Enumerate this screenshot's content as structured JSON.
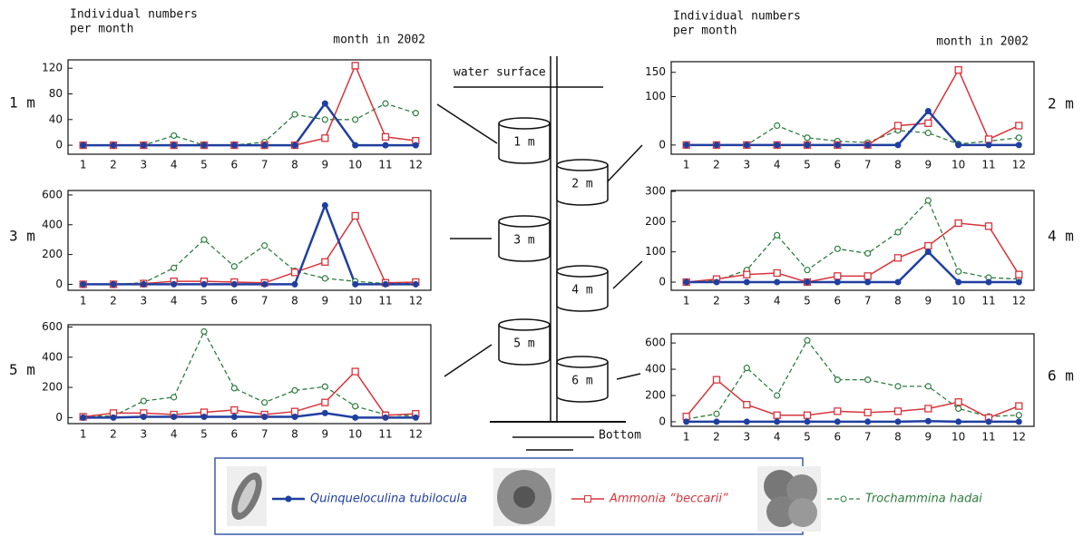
{
  "chart_data": [
    {
      "type": "line",
      "title": "1 m",
      "y_label": [
        "Individual numbers",
        "per month"
      ],
      "x_label": "month in 2002",
      "categories": [
        "1",
        "2",
        "3",
        "4",
        "5",
        "6",
        "7",
        "8",
        "9",
        "10",
        "11",
        "12"
      ],
      "ylim": [
        -14,
        133
      ],
      "yticks": [
        0,
        40,
        80,
        120
      ],
      "series": [
        {
          "name": "Quinqueloculina tubilocula",
          "color": "#1f3fa0",
          "values": [
            0,
            0,
            0,
            0,
            0,
            0,
            0,
            0,
            65,
            0,
            0,
            0
          ]
        },
        {
          "name": "Ammonia “beccarii”",
          "color": "#d8343c",
          "values": [
            0,
            0,
            0,
            0,
            0,
            0,
            0,
            0,
            11,
            124,
            13,
            7
          ]
        },
        {
          "name": "Trochammina hadai",
          "color": "#2e7d40",
          "values": [
            0,
            0,
            0,
            15,
            0,
            0,
            5,
            48,
            40,
            40,
            65,
            50
          ]
        }
      ]
    },
    {
      "type": "line",
      "title": "2 m",
      "y_label": [
        "Individual numbers",
        "per month"
      ],
      "x_label": "month in 2002",
      "categories": [
        "1",
        "2",
        "3",
        "4",
        "5",
        "6",
        "7",
        "8",
        "9",
        "10",
        "11",
        "12"
      ],
      "ylim": [
        -19,
        172
      ],
      "yticks": [
        0,
        100,
        150
      ],
      "series": [
        {
          "name": "Quinqueloculina tubilocula",
          "color": "#1f3fa0",
          "values": [
            0,
            0,
            0,
            0,
            0,
            0,
            0,
            0,
            70,
            0,
            0,
            0
          ]
        },
        {
          "name": "Ammonia “beccarii”",
          "color": "#d8343c",
          "values": [
            0,
            0,
            0,
            0,
            0,
            0,
            0,
            40,
            45,
            155,
            12,
            40
          ]
        },
        {
          "name": "Trochammina hadai",
          "color": "#2e7d40",
          "values": [
            0,
            0,
            0,
            40,
            15,
            8,
            5,
            30,
            25,
            2,
            8,
            15
          ]
        }
      ]
    },
    {
      "type": "line",
      "title": "3 m",
      "categories": [
        "1",
        "2",
        "3",
        "4",
        "5",
        "6",
        "7",
        "8",
        "9",
        "10",
        "11",
        "12"
      ],
      "ylim": [
        -40,
        630
      ],
      "yticks": [
        0,
        200,
        400,
        600
      ],
      "series": [
        {
          "name": "Quinqueloculina tubilocula",
          "color": "#1f3fa0",
          "values": [
            0,
            0,
            0,
            0,
            0,
            0,
            0,
            0,
            530,
            0,
            0,
            0
          ]
        },
        {
          "name": "Ammonia “beccarii”",
          "color": "#d8343c",
          "values": [
            0,
            0,
            5,
            20,
            20,
            15,
            10,
            80,
            150,
            460,
            10,
            15
          ]
        },
        {
          "name": "Trochammina hadai",
          "color": "#2e7d40",
          "values": [
            0,
            0,
            10,
            110,
            300,
            120,
            260,
            90,
            40,
            20,
            5,
            10
          ]
        }
      ]
    },
    {
      "type": "line",
      "title": "4 m",
      "categories": [
        "1",
        "2",
        "3",
        "4",
        "5",
        "6",
        "7",
        "8",
        "9",
        "10",
        "11",
        "12"
      ],
      "ylim": [
        -27,
        303
      ],
      "yticks": [
        0,
        100,
        200,
        300
      ],
      "series": [
        {
          "name": "Quinqueloculina tubilocula",
          "color": "#1f3fa0",
          "values": [
            0,
            0,
            0,
            0,
            0,
            0,
            0,
            0,
            100,
            0,
            0,
            0
          ]
        },
        {
          "name": "Ammonia “beccarii”",
          "color": "#d8343c",
          "values": [
            0,
            10,
            25,
            30,
            0,
            20,
            20,
            80,
            120,
            195,
            185,
            25
          ]
        },
        {
          "name": "Trochammina hadai",
          "color": "#2e7d40",
          "values": [
            0,
            5,
            40,
            155,
            40,
            110,
            95,
            165,
            270,
            35,
            15,
            10
          ]
        }
      ]
    },
    {
      "type": "line",
      "title": "5 m",
      "categories": [
        "1",
        "2",
        "3",
        "4",
        "5",
        "6",
        "7",
        "8",
        "9",
        "10",
        "11",
        "12"
      ],
      "ylim": [
        -40,
        615
      ],
      "yticks": [
        0,
        200,
        400,
        600
      ],
      "series": [
        {
          "name": "Quinqueloculina tubilocula",
          "color": "#1f3fa0",
          "values": [
            0,
            0,
            5,
            5,
            5,
            5,
            5,
            5,
            30,
            0,
            0,
            0
          ]
        },
        {
          "name": "Ammonia “beccarii”",
          "color": "#d8343c",
          "values": [
            5,
            30,
            30,
            20,
            35,
            50,
            20,
            40,
            100,
            305,
            15,
            25
          ]
        },
        {
          "name": "Trochammina hadai",
          "color": "#2e7d40",
          "values": [
            10,
            10,
            110,
            135,
            570,
            195,
            100,
            180,
            205,
            75,
            20,
            10
          ]
        }
      ]
    },
    {
      "type": "line",
      "title": "6 m",
      "categories": [
        "1",
        "2",
        "3",
        "4",
        "5",
        "6",
        "7",
        "8",
        "9",
        "10",
        "11",
        "12"
      ],
      "ylim": [
        -35,
        670
      ],
      "yticks": [
        0,
        200,
        400,
        600
      ],
      "series": [
        {
          "name": "Quinqueloculina tubilocula",
          "color": "#1f3fa0",
          "values": [
            0,
            0,
            0,
            0,
            0,
            0,
            0,
            0,
            5,
            0,
            0,
            0
          ]
        },
        {
          "name": "Ammonia “beccarii”",
          "color": "#d8343c",
          "values": [
            40,
            320,
            130,
            50,
            50,
            80,
            70,
            80,
            100,
            150,
            30,
            120
          ]
        },
        {
          "name": "Trochammina hadai",
          "color": "#2e7d40",
          "values": [
            20,
            60,
            410,
            200,
            620,
            320,
            320,
            270,
            270,
            100,
            40,
            50
          ]
        }
      ]
    }
  ],
  "diagram": {
    "water_surface": "water surface",
    "bottom": "Bottom"
  }
}
